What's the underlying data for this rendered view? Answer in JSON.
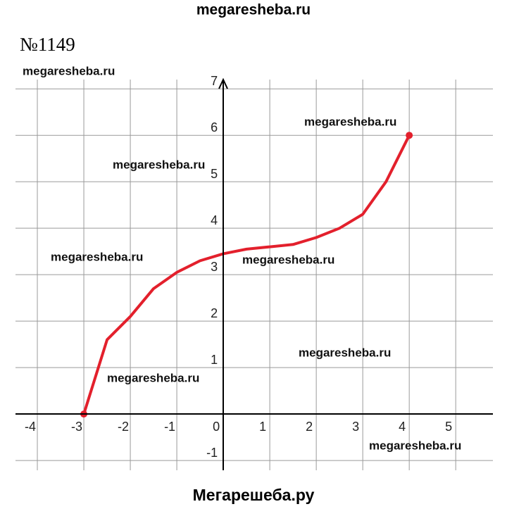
{
  "header": "megaresheba.ru",
  "problem_number": "№1149",
  "watermarks": [
    "megaresheba.ru",
    "megaresheba.ru",
    "megaresheba.ru",
    "megaresheba.ru",
    "megaresheba.ru",
    "megaresheba.ru",
    "megaresheba.ru",
    "megaresheba.ru"
  ],
  "footer": "Мегарешеба.ру",
  "chart_data": {
    "type": "line",
    "x": [
      -3,
      -2.5,
      -2,
      -1.5,
      -1,
      -0.5,
      0,
      0.5,
      1,
      1.5,
      2,
      2.5,
      3,
      3.5,
      4
    ],
    "series": [
      {
        "color": "#e3202c",
        "values": [
          0,
          1.6,
          2.1,
          2.7,
          3.05,
          3.3,
          3.45,
          3.55,
          3.6,
          3.65,
          3.8,
          4.0,
          4.3,
          5.0,
          6
        ]
      }
    ],
    "xlim": [
      -4.47,
      5.8
    ],
    "ylim": [
      -1.21,
      7.2
    ],
    "xticks": [
      -4,
      -3,
      -2,
      -1,
      0,
      1,
      2,
      3,
      4,
      5
    ],
    "yticks": [
      -1,
      1,
      2,
      3,
      4,
      5,
      6,
      7
    ],
    "grid": true
  }
}
